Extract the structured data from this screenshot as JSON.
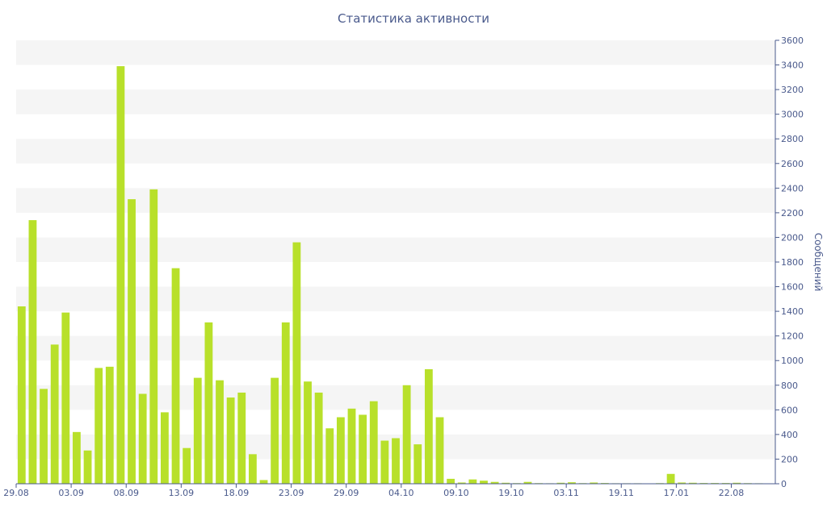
{
  "chart_data": {
    "type": "bar",
    "title": "Статистика активности",
    "ylabel": "Сообщений",
    "xlabel": "",
    "ylim": [
      0,
      3600
    ],
    "y_ticks": [
      0,
      200,
      400,
      600,
      800,
      1000,
      1200,
      1400,
      1600,
      1800,
      2000,
      2200,
      2400,
      2600,
      2800,
      3000,
      3200,
      3400,
      3600
    ],
    "y_axis_side": "right",
    "grid": "horizontal-bands",
    "x_tick_labels": [
      {
        "label": "29.08",
        "index": 0
      },
      {
        "label": "03.09",
        "index": 5
      },
      {
        "label": "08.09",
        "index": 10
      },
      {
        "label": "13.09",
        "index": 15
      },
      {
        "label": "18.09",
        "index": 20
      },
      {
        "label": "23.09",
        "index": 25
      },
      {
        "label": "29.09",
        "index": 30
      },
      {
        "label": "04.10",
        "index": 35
      },
      {
        "label": "09.10",
        "index": 40
      },
      {
        "label": "19.10",
        "index": 45
      },
      {
        "label": "03.11",
        "index": 50
      },
      {
        "label": "19.11",
        "index": 55
      },
      {
        "label": "17.01",
        "index": 60
      },
      {
        "label": "22.08",
        "index": 65
      }
    ],
    "values": [
      1440,
      2140,
      770,
      1130,
      1390,
      420,
      270,
      940,
      950,
      3390,
      2310,
      730,
      2390,
      580,
      1750,
      290,
      860,
      1310,
      840,
      700,
      740,
      240,
      30,
      860,
      1310,
      1960,
      830,
      740,
      450,
      540,
      610,
      560,
      670,
      350,
      370,
      800,
      320,
      930,
      540,
      40,
      10,
      35,
      25,
      15,
      8,
      5,
      15,
      5,
      4,
      8,
      12,
      5,
      10,
      6,
      4,
      4,
      4,
      2,
      5,
      80,
      10,
      8,
      6,
      6,
      6,
      8,
      5,
      4,
      3
    ],
    "colors": {
      "bar": "#b8e02a",
      "axis": "#4a5a8c",
      "band": "#f5f5f5"
    }
  }
}
